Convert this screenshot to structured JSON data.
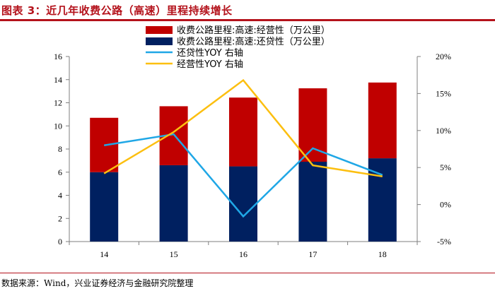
{
  "title": "图表 3：近几年收费公路（高速）里程持续增长",
  "source": "数据来源：Wind，兴业证券经济与金融研究院整理",
  "colors": {
    "title": "#b4121b",
    "operating_bar": "#c00000",
    "loan_bar": "#002060",
    "loan_yoy_line": "#1fa7e6",
    "operating_yoy_line": "#fcbf10",
    "axis": "#7f7f7f"
  },
  "chart_data": {
    "type": "bar",
    "stacked": true,
    "categories": [
      "14",
      "15",
      "16",
      "17",
      "18"
    ],
    "series": [
      {
        "name": "收费公路里程:高速:还贷性（万公里）",
        "type": "bar",
        "axis": "left",
        "values": [
          6.0,
          6.6,
          6.5,
          6.9,
          7.2
        ]
      },
      {
        "name": "收费公路里程:高速:经营性（万公里）",
        "type": "bar",
        "axis": "left",
        "values": [
          4.7,
          5.1,
          5.95,
          6.35,
          6.55
        ]
      },
      {
        "name": "还贷性YOY 右轴",
        "type": "line",
        "axis": "right",
        "values": [
          8.0,
          9.5,
          -1.6,
          7.6,
          4.0
        ]
      },
      {
        "name": "经营性YOY 右轴",
        "type": "line",
        "axis": "right",
        "values": [
          4.2,
          9.8,
          16.8,
          5.3,
          3.8
        ]
      }
    ],
    "legend_order": [
      "收费公路里程:高速:经营性（万公里）",
      "收费公路里程:高速:还贷性（万公里）",
      "还贷性YOY 右轴",
      "经营性YOY 右轴"
    ],
    "ylim_left": [
      0,
      16
    ],
    "yticks_left": [
      "0",
      "2",
      "4",
      "6",
      "8",
      "10",
      "12",
      "14",
      "16"
    ],
    "ylim_right": [
      -5,
      20
    ],
    "yticks_right": [
      "-5%",
      "0%",
      "5%",
      "10%",
      "15%",
      "20%"
    ],
    "legend_position": "top-center",
    "grid": false
  }
}
